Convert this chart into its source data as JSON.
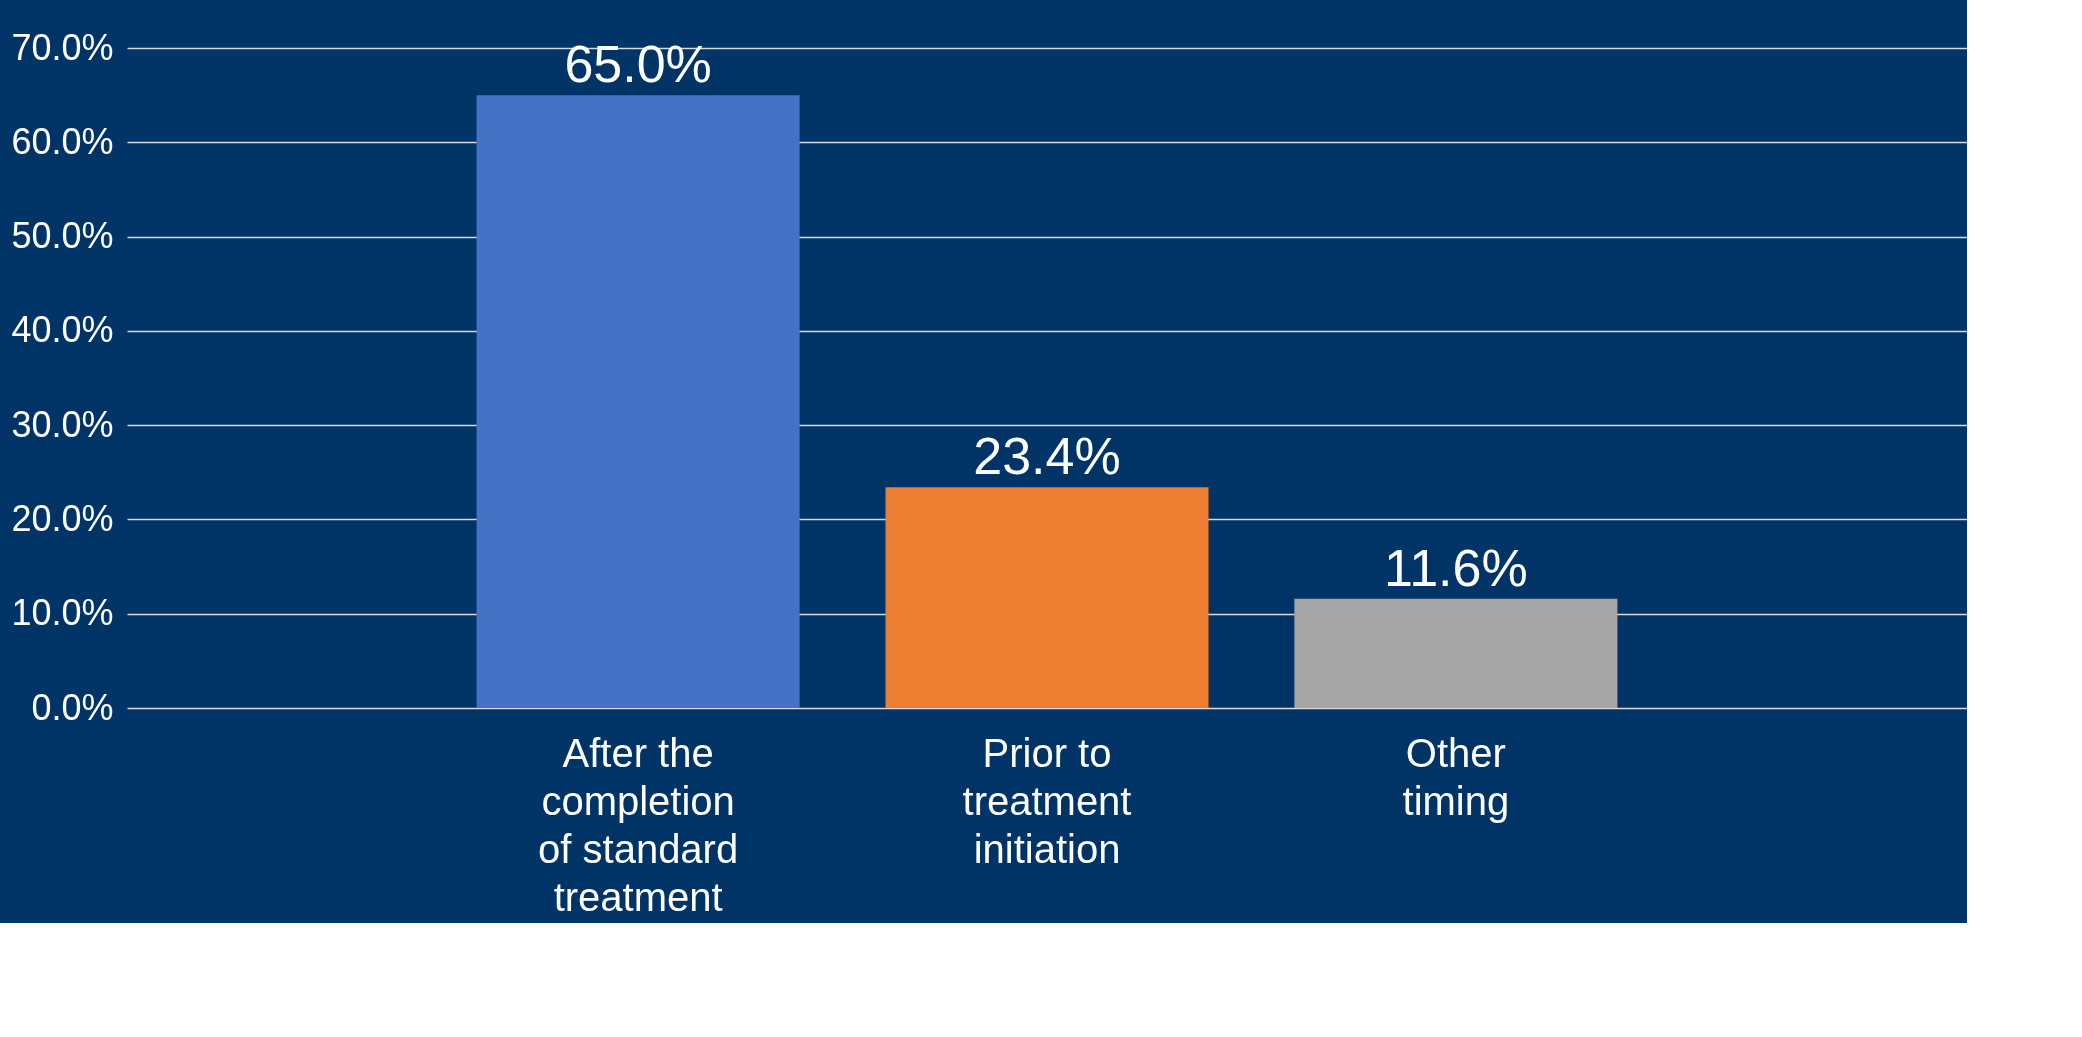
{
  "chart_data": {
    "type": "bar",
    "categories": [
      "After the\ncompletion\nof standard\ntreatment",
      "Prior to\ntreatment\ninitiation",
      "Other\ntiming"
    ],
    "values": [
      65.0,
      23.4,
      11.6
    ],
    "colors": [
      "#4472c4",
      "#ed7d31",
      "#a5a5a5"
    ],
    "value_labels": [
      "65.0%",
      "23.4%",
      "11.6%"
    ],
    "ylim": [
      0,
      70
    ],
    "yticks": [
      {
        "value": 0,
        "label": "0.0%"
      },
      {
        "value": 10,
        "label": "10.0%"
      },
      {
        "value": 20,
        "label": "20.0%"
      },
      {
        "value": 30,
        "label": "30.0%"
      },
      {
        "value": 40,
        "label": "40.0%"
      },
      {
        "value": 50,
        "label": "50.0%"
      },
      {
        "value": 60,
        "label": "60.0%"
      },
      {
        "value": 70,
        "label": "70.0%"
      }
    ],
    "grid": "y",
    "legend": false
  }
}
